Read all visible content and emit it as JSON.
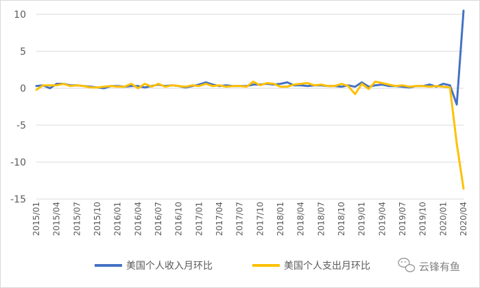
{
  "chart_data": {
    "type": "line",
    "title": "",
    "xlabel": "",
    "ylabel": "",
    "ylim": [
      -15,
      10
    ],
    "y_ticks": [
      10,
      5,
      0,
      -5,
      -10,
      -15
    ],
    "grid": {
      "horizontal": true,
      "vertical": false
    },
    "legend_position": "bottom",
    "x": [
      "2015/01",
      "2015/02",
      "2015/03",
      "2015/04",
      "2015/05",
      "2015/06",
      "2015/07",
      "2015/08",
      "2015/09",
      "2015/10",
      "2015/11",
      "2015/12",
      "2016/01",
      "2016/02",
      "2016/03",
      "2016/04",
      "2016/05",
      "2016/06",
      "2016/07",
      "2016/08",
      "2016/09",
      "2016/10",
      "2016/11",
      "2016/12",
      "2017/01",
      "2017/02",
      "2017/03",
      "2017/04",
      "2017/05",
      "2017/06",
      "2017/07",
      "2017/08",
      "2017/09",
      "2017/10",
      "2017/11",
      "2017/12",
      "2018/01",
      "2018/02",
      "2018/03",
      "2018/04",
      "2018/05",
      "2018/06",
      "2018/07",
      "2018/08",
      "2018/09",
      "2018/10",
      "2018/11",
      "2018/12",
      "2019/01",
      "2019/02",
      "2019/03",
      "2019/04",
      "2019/05",
      "2019/06",
      "2019/07",
      "2019/08",
      "2019/09",
      "2019/10",
      "2019/11",
      "2019/12",
      "2020/01",
      "2020/02",
      "2020/03",
      "2020/04"
    ],
    "x_tick_labels": [
      "2015/01",
      "2015/04",
      "2015/07",
      "2015/10",
      "2016/01",
      "2016/04",
      "2016/07",
      "2016/10",
      "2017/01",
      "2017/04",
      "2017/07",
      "2017/10",
      "2018/01",
      "2018/04",
      "2018/07",
      "2018/10",
      "2019/01",
      "2019/04",
      "2019/07",
      "2019/10",
      "2020/01",
      "2020/04"
    ],
    "series": [
      {
        "name": "美国个人收入月环比",
        "color": "#4472c4",
        "values": [
          0.3,
          0.4,
          0.0,
          0.6,
          0.6,
          0.4,
          0.4,
          0.3,
          0.2,
          0.1,
          0.0,
          0.3,
          0.3,
          0.2,
          0.3,
          0.3,
          0.1,
          0.3,
          0.5,
          0.3,
          0.4,
          0.3,
          0.1,
          0.3,
          0.5,
          0.8,
          0.5,
          0.3,
          0.4,
          0.3,
          0.3,
          0.3,
          0.5,
          0.5,
          0.6,
          0.5,
          0.6,
          0.8,
          0.4,
          0.4,
          0.3,
          0.4,
          0.4,
          0.3,
          0.3,
          0.2,
          0.4,
          0.2,
          0.8,
          0.2,
          0.4,
          0.5,
          0.3,
          0.3,
          0.2,
          0.1,
          0.3,
          0.3,
          0.5,
          0.2,
          0.6,
          0.4,
          -2.2,
          10.5
        ]
      },
      {
        "name": "美国个人支出月环比",
        "color": "#ffc000",
        "values": [
          -0.2,
          0.4,
          0.4,
          0.4,
          0.6,
          0.3,
          0.4,
          0.3,
          0.1,
          0.1,
          0.2,
          0.3,
          0.2,
          0.2,
          0.6,
          0.0,
          0.6,
          0.2,
          0.6,
          0.2,
          0.4,
          0.3,
          0.2,
          0.4,
          0.3,
          0.6,
          0.3,
          0.4,
          0.2,
          0.3,
          0.3,
          0.2,
          0.9,
          0.4,
          0.7,
          0.6,
          0.2,
          0.2,
          0.5,
          0.6,
          0.7,
          0.4,
          0.5,
          0.3,
          0.3,
          0.6,
          0.3,
          -0.8,
          0.6,
          -0.1,
          0.9,
          0.7,
          0.5,
          0.3,
          0.4,
          0.2,
          0.3,
          0.3,
          0.2,
          0.3,
          0.2,
          0.1,
          -7.5,
          -13.6
        ]
      }
    ]
  },
  "watermark": {
    "text": "云锋有鱼",
    "icon": "wechat-icon"
  }
}
